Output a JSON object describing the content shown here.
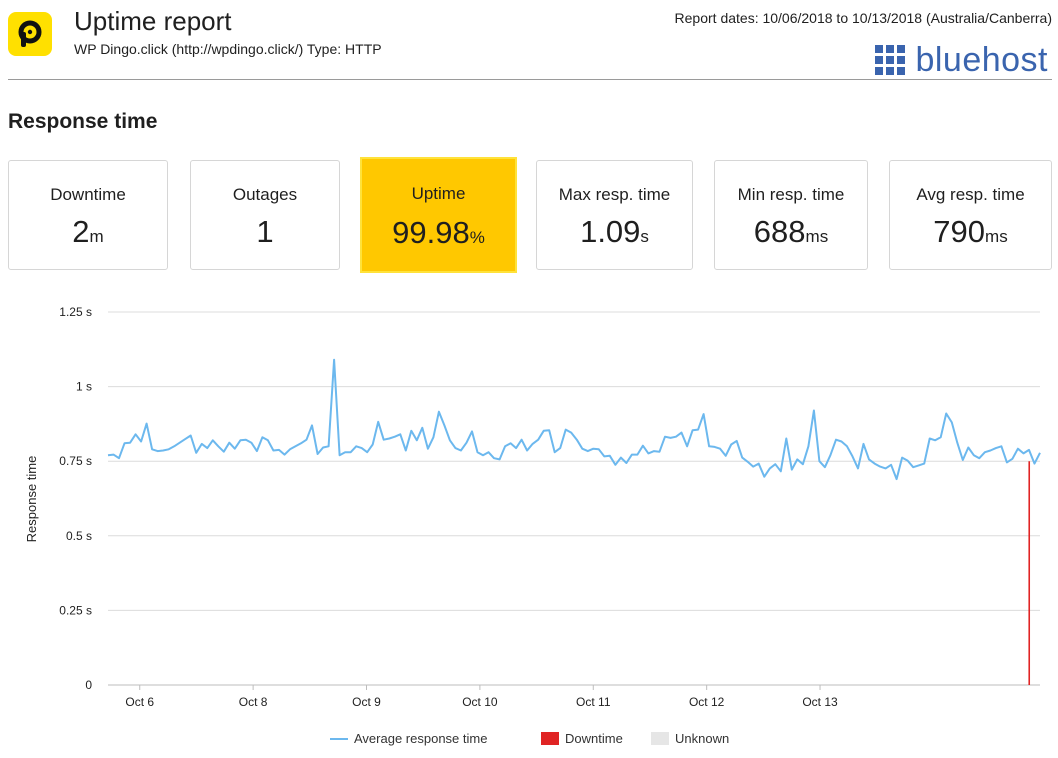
{
  "header": {
    "title": "Uptime report",
    "subtitle": "WP Dingo.click (http://wpdingo.click/) Type: HTTP",
    "report_dates": "Report dates: 10/06/2018 to 10/13/2018 (Australia/Canberra)",
    "brand": "bluehost",
    "logo_letter": "P"
  },
  "section_title": "Response time",
  "colors": {
    "accent_yellow": "#ffc800",
    "logo_yellow": "#ffe000",
    "line_blue": "#6cb8ee",
    "downtime_red": "#e02424",
    "unknown_gray": "#e6e6e6",
    "brand_blue": "#3a64ae"
  },
  "cards": [
    {
      "label": "Downtime",
      "value": "2",
      "unit": "m"
    },
    {
      "label": "Outages",
      "value": "1",
      "unit": ""
    },
    {
      "label": "Uptime",
      "value": "99.98",
      "unit": "%"
    },
    {
      "label": "Max resp. time",
      "value": "1.09",
      "unit": "s"
    },
    {
      "label": "Min resp. time",
      "value": "688",
      "unit": "ms"
    },
    {
      "label": "Avg resp. time",
      "value": "790",
      "unit": "ms"
    }
  ],
  "chart_data": {
    "type": "line",
    "ylabel": "Response time",
    "xlabel": "",
    "ylim": [
      0,
      1.25
    ],
    "y_ticks": [
      0,
      0.25,
      0.5,
      0.75,
      1,
      1.25
    ],
    "y_tick_labels": [
      "0",
      "0.25 s",
      "0.5 s",
      "0.75 s",
      "1 s",
      "1.25 s"
    ],
    "x_range": [
      5.72,
      13.94
    ],
    "x_ticks": [
      6,
      7,
      8,
      9,
      10,
      11,
      12,
      13
    ],
    "x_tick_labels": [
      "Oct 6",
      "Oct 8",
      "Oct 9",
      "Oct 10",
      "Oct 11",
      "Oct 12",
      "Oct 13"
    ],
    "x_tick_positions": [
      6,
      7,
      8,
      9,
      10,
      11,
      12
    ],
    "grid": true,
    "legend_position": "bottom",
    "legend": [
      {
        "label": "Average response time",
        "kind": "line"
      },
      {
        "label": "Downtime",
        "kind": "swatch"
      },
      {
        "label": "Unknown",
        "kind": "swatch"
      }
    ],
    "series": [
      {
        "values": [
          0.77,
          0.772,
          0.76,
          0.81,
          0.812,
          0.84,
          0.816,
          0.876,
          0.79,
          0.784,
          0.786,
          0.79,
          0.8,
          0.812,
          0.824,
          0.836,
          0.778,
          0.808,
          0.794,
          0.82,
          0.8,
          0.782,
          0.812,
          0.792,
          0.82,
          0.822,
          0.812,
          0.784,
          0.83,
          0.82,
          0.786,
          0.788,
          0.772,
          0.79,
          0.8,
          0.81,
          0.822,
          0.87,
          0.774,
          0.796,
          0.8,
          1.09,
          0.77,
          0.78,
          0.78,
          0.8,
          0.794,
          0.78,
          0.806,
          0.882,
          0.822,
          0.826,
          0.832,
          0.84,
          0.786,
          0.852,
          0.82,
          0.862,
          0.792,
          0.83,
          0.916,
          0.87,
          0.82,
          0.794,
          0.786,
          0.812,
          0.85,
          0.78,
          0.77,
          0.78,
          0.76,
          0.756,
          0.8,
          0.81,
          0.794,
          0.822,
          0.786,
          0.808,
          0.822,
          0.852,
          0.854,
          0.78,
          0.794,
          0.856,
          0.846,
          0.822,
          0.792,
          0.784,
          0.792,
          0.79,
          0.766,
          0.768,
          0.738,
          0.762,
          0.744,
          0.772,
          0.772,
          0.802,
          0.776,
          0.784,
          0.782,
          0.832,
          0.828,
          0.832,
          0.846,
          0.8,
          0.854,
          0.856,
          0.908,
          0.8,
          0.798,
          0.792,
          0.768,
          0.806,
          0.818,
          0.762,
          0.748,
          0.732,
          0.742,
          0.698,
          0.726,
          0.74,
          0.716,
          0.826,
          0.722,
          0.756,
          0.74,
          0.8,
          0.92,
          0.75,
          0.73,
          0.77,
          0.822,
          0.816,
          0.8,
          0.766,
          0.726,
          0.808,
          0.756,
          0.742,
          0.732,
          0.726,
          0.738,
          0.69,
          0.762,
          0.752,
          0.73,
          0.736,
          0.742,
          0.826,
          0.82,
          0.83,
          0.91,
          0.88,
          0.812,
          0.754,
          0.796,
          0.77,
          0.76,
          0.78,
          0.786,
          0.794,
          0.8,
          0.746,
          0.758,
          0.792,
          0.776,
          0.788,
          0.742,
          0.778
        ],
        "x_start": 5.72,
        "x_end": 13.94
      }
    ],
    "downtime_events": [
      {
        "x": 13.845,
        "value": 0.75
      }
    ]
  }
}
